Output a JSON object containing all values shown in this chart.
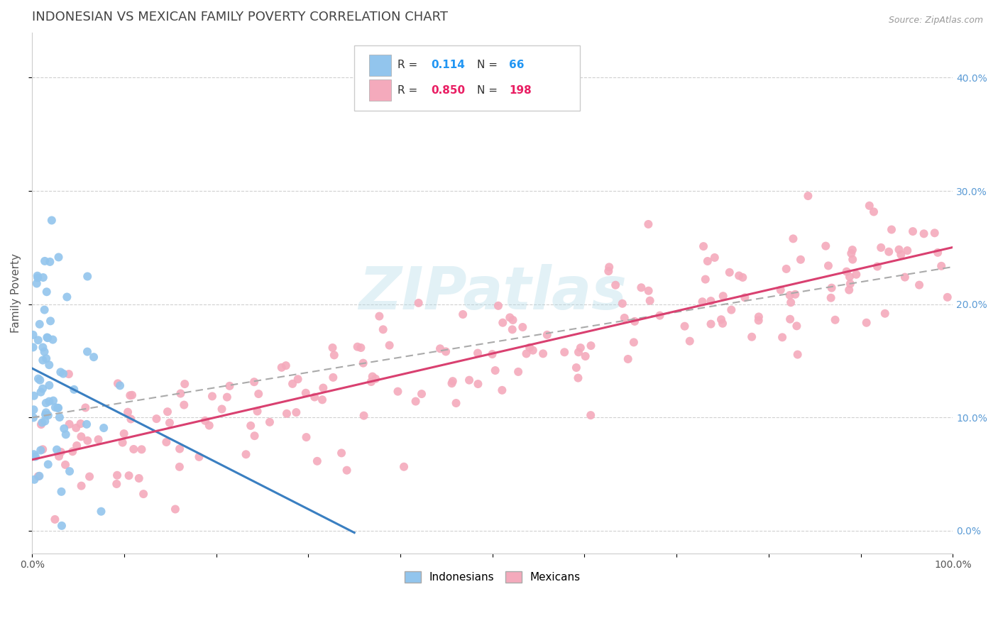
{
  "title": "INDONESIAN VS MEXICAN FAMILY POVERTY CORRELATION CHART",
  "source_text": "Source: ZipAtlas.com",
  "ylabel": "Family Poverty",
  "xlim": [
    0,
    1.0
  ],
  "ylim": [
    -0.02,
    0.44
  ],
  "y_ticks": [
    0.0,
    0.1,
    0.2,
    0.3,
    0.4
  ],
  "indonesian_R": 0.114,
  "indonesian_N": 66,
  "mexican_R": 0.85,
  "mexican_N": 198,
  "indonesian_color": "#92C5ED",
  "mexican_color": "#F4AABC",
  "indonesian_line_color": "#3A7FC1",
  "mexican_line_color": "#D94070",
  "regression_line_color": "#AAAAAA",
  "background_color": "#FFFFFF",
  "watermark_text": "ZIPatlas",
  "legend_R_color_indonesian": "#2196F3",
  "legend_R_color_mexican": "#E91E63",
  "title_color": "#444444",
  "right_tick_color": "#5B9BD5",
  "title_fontsize": 13,
  "axis_label_fontsize": 11,
  "tick_fontsize": 10
}
